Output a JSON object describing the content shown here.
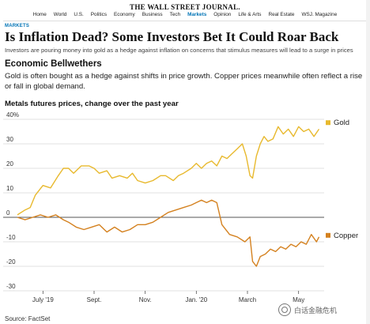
{
  "masthead": "THE WALL STREET JOURNAL.",
  "nav": {
    "items": [
      "Home",
      "World",
      "U.S.",
      "Politics",
      "Economy",
      "Business",
      "Tech",
      "Markets",
      "Opinion",
      "Life & Arts",
      "Real Estate",
      "WSJ. Magazine"
    ],
    "active_index": 7
  },
  "article": {
    "section": "MARKETS",
    "headline": "Is Inflation Dead? Some Investors Bet It Could Roar Back",
    "dek": "Investors are pouring money into gold as a hedge against inflation on concerns that stimulus measures will lead to a surge in prices"
  },
  "graphic": {
    "title": "Economic Bellwethers",
    "description": "Gold is often bought as a hedge against shifts in price growth. Copper prices meanwhile often reflect a rise or fall in global demand.",
    "subtitle": "Metals futures prices, change over the past year",
    "source": "Source: FactSet"
  },
  "watermark": "白话金融危机",
  "colors": {
    "gold": "#e8b92e",
    "copper": "#d4811f",
    "zero_line": "#555555",
    "grid": "#d9d9d9",
    "accent": "#0274b6"
  },
  "chart_data": {
    "type": "line",
    "ylim": [
      -30,
      40
    ],
    "yticks": [
      40,
      30,
      20,
      10,
      0,
      -10,
      -20,
      -30
    ],
    "ytick_labels": [
      "40%",
      "30",
      "20",
      "10",
      "0",
      "-10",
      "-20",
      "-30"
    ],
    "xlim": [
      0,
      12
    ],
    "xticks": [
      {
        "label": "July '19",
        "x": 1
      },
      {
        "label": "Sept.",
        "x": 3
      },
      {
        "label": "Nov.",
        "x": 5
      },
      {
        "label": "Jan. '20",
        "x": 7
      },
      {
        "label": "March",
        "x": 9
      },
      {
        "label": "May",
        "x": 11
      }
    ],
    "grid": "horizontal",
    "legend": "inline labels at right end",
    "series": [
      {
        "name": "Gold",
        "x": [
          0,
          0.3,
          0.5,
          0.7,
          1.0,
          1.3,
          1.6,
          1.8,
          2.0,
          2.2,
          2.5,
          2.8,
          3.0,
          3.2,
          3.5,
          3.7,
          4.0,
          4.3,
          4.5,
          4.7,
          5.0,
          5.3,
          5.6,
          5.8,
          6.1,
          6.3,
          6.5,
          6.8,
          7.0,
          7.2,
          7.4,
          7.6,
          7.8,
          8.0,
          8.2,
          8.4,
          8.6,
          8.8,
          8.95,
          9.1,
          9.2,
          9.35,
          9.5,
          9.65,
          9.8,
          10.0,
          10.2,
          10.4,
          10.6,
          10.8,
          11.0,
          11.2,
          11.4,
          11.6,
          11.8
        ],
        "values": [
          1,
          3,
          4,
          9,
          13,
          12,
          17,
          20,
          20,
          18,
          21,
          21,
          20,
          18,
          19,
          16,
          17,
          16,
          18,
          15,
          14,
          15,
          17,
          17,
          15,
          17,
          18,
          20,
          22,
          20,
          22,
          23,
          21,
          25,
          24,
          26,
          28,
          30,
          25,
          17,
          16,
          25,
          30,
          33,
          31,
          32,
          37,
          34,
          36,
          33,
          37,
          35,
          36,
          33,
          36
        ]
      },
      {
        "name": "Copper",
        "x": [
          0,
          0.3,
          0.6,
          0.9,
          1.2,
          1.5,
          1.8,
          2.0,
          2.3,
          2.6,
          2.9,
          3.2,
          3.5,
          3.8,
          4.1,
          4.4,
          4.7,
          5.0,
          5.3,
          5.6,
          5.9,
          6.2,
          6.5,
          6.8,
          7.0,
          7.2,
          7.4,
          7.6,
          7.8,
          8.0,
          8.3,
          8.6,
          8.9,
          9.1,
          9.2,
          9.35,
          9.5,
          9.7,
          9.9,
          10.1,
          10.3,
          10.5,
          10.7,
          10.9,
          11.1,
          11.3,
          11.5,
          11.7,
          11.8
        ],
        "values": [
          0,
          -1,
          0,
          1,
          0,
          1,
          -1,
          -2,
          -4,
          -5,
          -4,
          -3,
          -6,
          -4,
          -6,
          -5,
          -3,
          -3,
          -2,
          0,
          2,
          3,
          4,
          5,
          6,
          7,
          6,
          7,
          6,
          -3,
          -7,
          -8,
          -10,
          -8,
          -18,
          -20,
          -16,
          -15,
          -13,
          -14,
          -12,
          -13,
          -11,
          -12,
          -10,
          -11,
          -7,
          -10,
          -8
        ]
      }
    ]
  }
}
